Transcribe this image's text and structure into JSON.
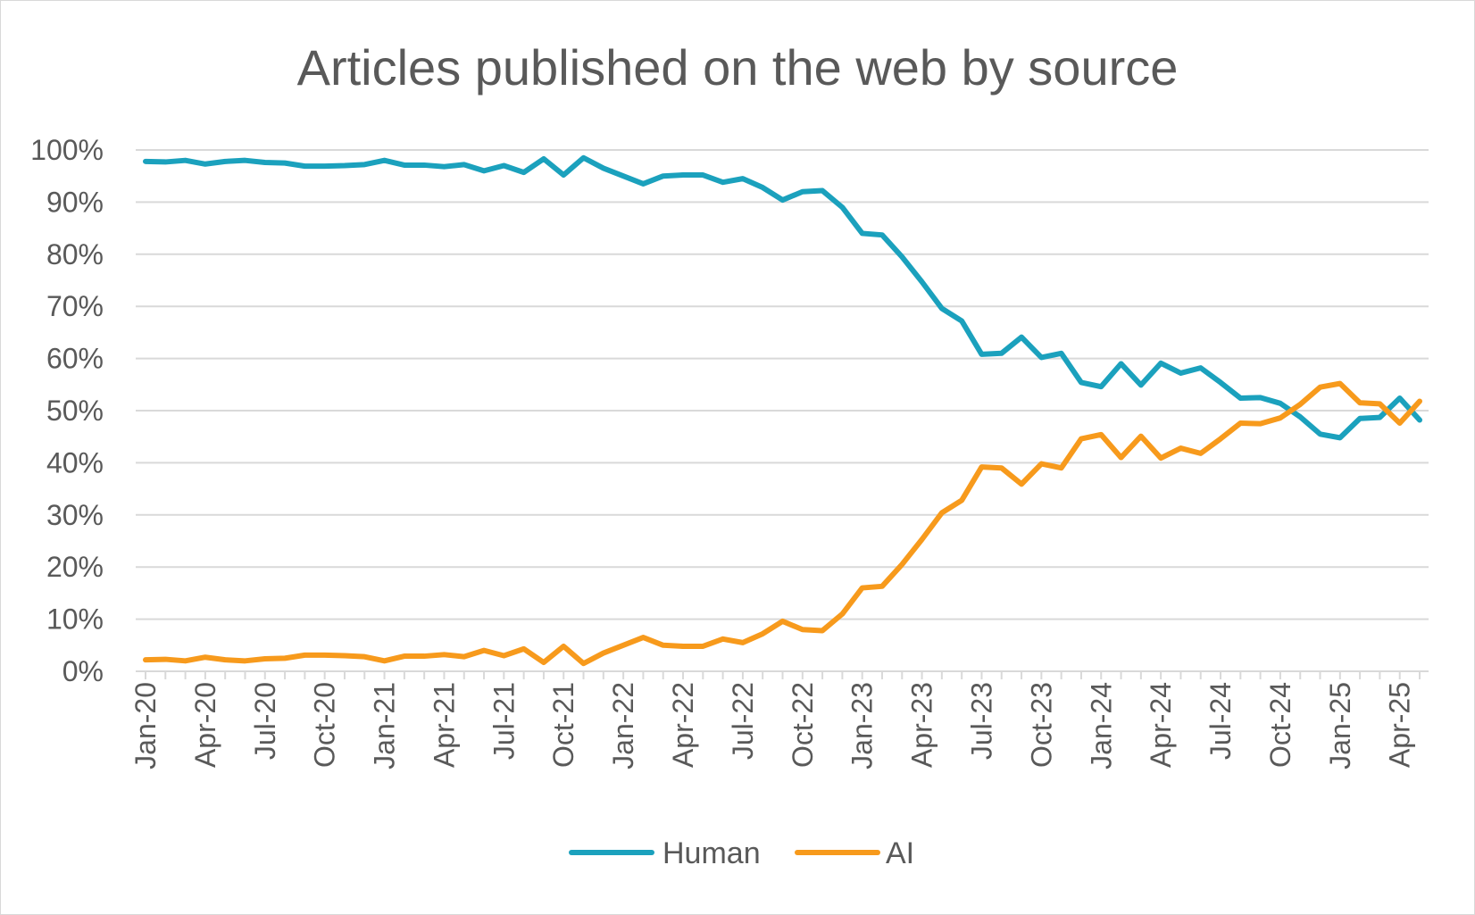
{
  "chart_data": {
    "type": "line",
    "title": "Articles published on the web by source",
    "xlabel": "",
    "ylabel": "",
    "ylim": [
      0,
      100
    ],
    "y_ticks": [
      "0%",
      "10%",
      "20%",
      "30%",
      "40%",
      "50%",
      "60%",
      "70%",
      "80%",
      "90%",
      "100%"
    ],
    "x_tick_labels": [
      "Jan-20",
      "Apr-20",
      "Jul-20",
      "Oct-20",
      "Jan-21",
      "Apr-21",
      "Jul-21",
      "Oct-21",
      "Jan-22",
      "Apr-22",
      "Jul-22",
      "Oct-22",
      "Jan-23",
      "Apr-23",
      "Jul-23",
      "Oct-23",
      "Jan-24",
      "Apr-24",
      "Jul-24",
      "Oct-24",
      "Jan-25",
      "Apr-25"
    ],
    "grid": true,
    "legend": "bottom",
    "colors": {
      "Human": "#1ba1bd",
      "AI": "#f79a1c",
      "grid": "#d9d9d9",
      "text": "#595959"
    },
    "series": [
      {
        "name": "Human",
        "values": [
          97.8,
          97.7,
          98.0,
          97.3,
          97.8,
          98.0,
          97.6,
          97.5,
          96.9,
          96.9,
          97.0,
          97.2,
          98.0,
          97.1,
          97.1,
          96.8,
          97.2,
          96.0,
          97.0,
          95.7,
          98.3,
          95.2,
          98.5,
          96.5,
          95.0,
          93.5,
          95.0,
          95.2,
          95.2,
          93.8,
          94.5,
          92.8,
          90.4,
          92.0,
          92.2,
          89.0,
          84.0,
          83.7,
          79.5,
          74.7,
          69.6,
          67.2,
          60.8,
          61.0,
          64.1,
          60.2,
          61.0,
          55.4,
          54.6,
          59.0,
          54.9,
          59.1,
          57.2,
          58.2,
          55.4,
          52.4,
          52.5,
          51.4,
          48.8,
          45.5,
          44.8,
          48.5,
          48.7,
          52.4,
          48.2
        ]
      },
      {
        "name": "AI",
        "values": [
          2.2,
          2.3,
          2.0,
          2.7,
          2.2,
          2.0,
          2.4,
          2.5,
          3.1,
          3.1,
          3.0,
          2.8,
          2.0,
          2.9,
          2.9,
          3.2,
          2.8,
          4.0,
          3.0,
          4.3,
          1.7,
          4.8,
          1.5,
          3.5,
          5.0,
          6.5,
          5.0,
          4.8,
          4.8,
          6.2,
          5.5,
          7.2,
          9.6,
          8.0,
          7.8,
          11.0,
          16.0,
          16.3,
          20.5,
          25.3,
          30.4,
          32.8,
          39.2,
          39.0,
          35.9,
          39.8,
          39.0,
          44.6,
          45.4,
          41.0,
          45.1,
          40.9,
          42.8,
          41.8,
          44.6,
          47.6,
          47.5,
          48.6,
          51.2,
          54.5,
          55.2,
          51.5,
          51.3,
          47.6,
          51.8
        ]
      }
    ]
  }
}
